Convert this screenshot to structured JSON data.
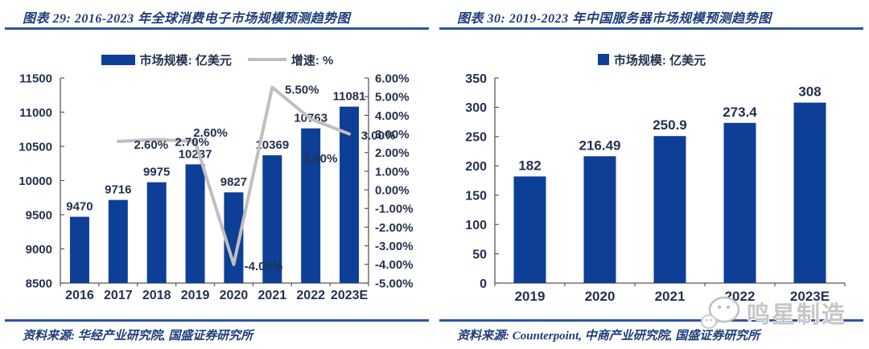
{
  "watermark": {
    "text": "鸣星制造",
    "icon": "wechat-icon"
  },
  "colors": {
    "bar": "#0d3f96",
    "line": "#bfbfbf",
    "axis": "#595959",
    "label_text": "#23324f",
    "title_text": "#1e3d7b",
    "rule": "#2c55a3",
    "watermark": "#c6c6c6"
  },
  "panels": [
    {
      "title": "图表 29:  2016-2023 年全球消费电子市场规模预测趋势图",
      "legend": [
        {
          "swatch": "bar",
          "label": "市场规模: 亿美元"
        },
        {
          "swatch": "line",
          "label": "增速: %"
        }
      ],
      "source": "资料来源: 华经产业研究院, 国盛证券研究所"
    },
    {
      "title": "图表 30:  2019-2023 年中国服务器市场规模预测趋势图",
      "legend": [
        {
          "swatch": "bar-small",
          "label": "市场规模: 亿美元"
        }
      ],
      "source": "资料来源: Counterpoint, 中商产业研究院, 国盛证券研究所"
    }
  ],
  "chart_data": [
    {
      "type": "bar",
      "title": "2016-2023 年全球消费电子市场规模预测趋势图",
      "categories": [
        "2016",
        "2017",
        "2018",
        "2019",
        "2020",
        "2021",
        "2022",
        "2023E"
      ],
      "series": [
        {
          "name": "市场规模: 亿美元",
          "type": "bar",
          "axis": "left",
          "values": [
            9470,
            9716,
            9975,
            10237,
            9827,
            10369,
            10763,
            11081
          ],
          "labels": [
            "9470",
            "9716",
            "9975",
            "10237",
            "9827",
            "10369",
            "10763",
            "11081"
          ]
        },
        {
          "name": "增速: %",
          "type": "line",
          "axis": "right",
          "values": [
            null,
            2.6,
            2.7,
            2.6,
            -4.0,
            5.5,
            3.8,
            3.0
          ],
          "labels": [
            null,
            "2.60%",
            "2.70%",
            "2.60%",
            "-4.00%",
            "5.50%",
            "3.80%",
            "3.00%"
          ]
        }
      ],
      "left_axis": {
        "min": 8500,
        "max": 11500,
        "step": 500,
        "ticks": [
          "8500",
          "9000",
          "9500",
          "10000",
          "10500",
          "11000",
          "11500"
        ]
      },
      "right_axis": {
        "min": -5,
        "max": 6,
        "step": 1,
        "ticks": [
          "-5.00%",
          "-4.00%",
          "-3.00%",
          "-2.00%",
          "-1.00%",
          "0.00%",
          "1.00%",
          "2.00%",
          "3.00%",
          "4.00%",
          "5.00%",
          "6.00%"
        ]
      },
      "grid": false,
      "legend_position": "top"
    },
    {
      "type": "bar",
      "title": "2019-2023 年中国服务器市场规模预测趋势图",
      "categories": [
        "2019",
        "2020",
        "2021",
        "2022",
        "2023E"
      ],
      "series": [
        {
          "name": "市场规模: 亿美元",
          "type": "bar",
          "axis": "left",
          "values": [
            182,
            216.49,
            250.9,
            273.4,
            308
          ],
          "labels": [
            "182",
            "216.49",
            "250.9",
            "273.4",
            "308"
          ]
        }
      ],
      "left_axis": {
        "min": 0,
        "max": 350,
        "step": 50,
        "ticks": [
          "0",
          "50",
          "100",
          "150",
          "200",
          "250",
          "300",
          "350"
        ]
      },
      "grid": false,
      "legend_position": "top"
    }
  ]
}
